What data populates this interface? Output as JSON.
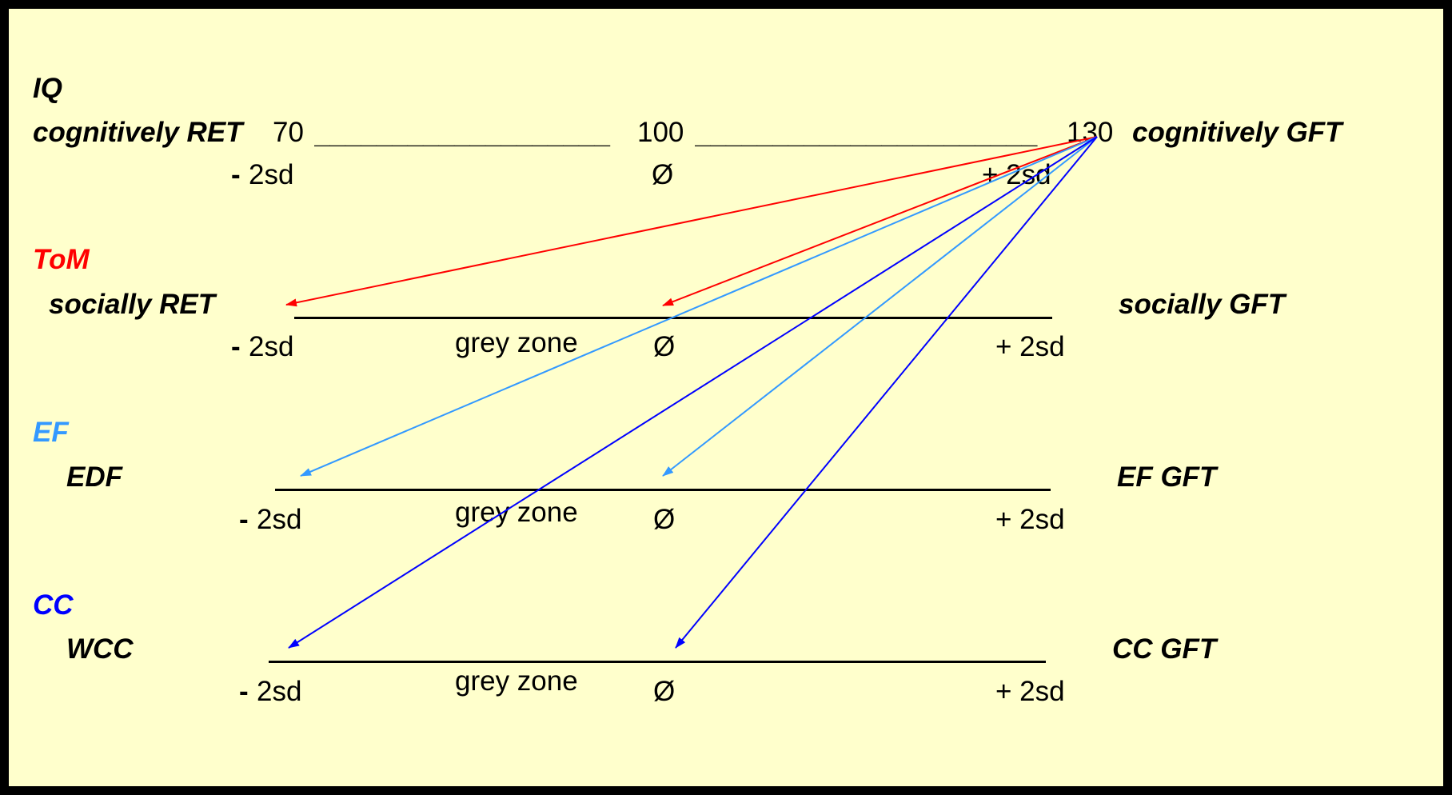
{
  "iq": {
    "heading": "IQ",
    "left_label": "cognitively RET",
    "right_label": "cognitively GFT",
    "scale_70": "70",
    "scale_100": "100",
    "scale_130": "130",
    "underscores_left": "___________________",
    "underscores_right": "______________________",
    "minus_sign": "-",
    "minus_sd": "2sd",
    "mean_symbol": "Ø",
    "plus_sd": "+ 2sd"
  },
  "tom": {
    "heading": "ToM",
    "left_label": "socially RET",
    "right_label": "socially GFT",
    "minus_sign": "-",
    "minus_sd": "2sd",
    "grey_zone": "grey zone",
    "mean_symbol": "Ø",
    "plus_sd": "+ 2sd"
  },
  "ef": {
    "heading": "EF",
    "left_label": "EDF",
    "right_label": "EF GFT",
    "minus_sign": "-",
    "minus_sd": "2sd",
    "grey_zone": "grey zone",
    "mean_symbol": "Ø",
    "plus_sd": "+ 2sd"
  },
  "cc": {
    "heading": "CC",
    "left_label": "WCC",
    "right_label": "CC GFT",
    "minus_sign": "-",
    "minus_sd": "2sd",
    "grey_zone": "grey zone",
    "mean_symbol": "Ø",
    "plus_sd": "+ 2sd"
  },
  "colors": {
    "background": "#ffffcc",
    "tom_red": "#ff0000",
    "ef_lightblue": "#3399ff",
    "cc_blue": "#0000ff"
  }
}
